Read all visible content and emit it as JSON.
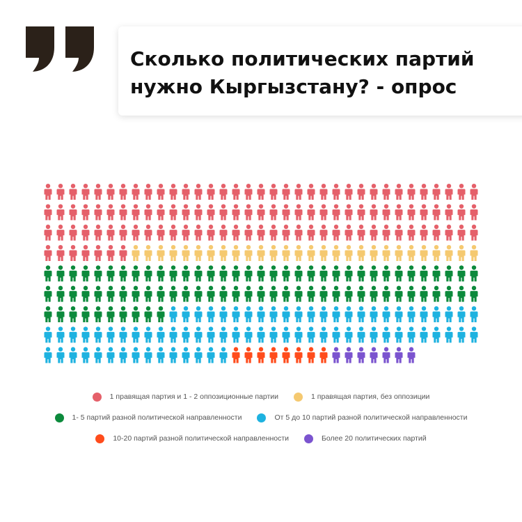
{
  "header": {
    "title_line1": "Сколько политических партий",
    "title_line2": "нужно Кыргызстану? - опрос"
  },
  "colors": {
    "quote": "#2b2119",
    "red": "#e5606a",
    "yellow": "#f5c970",
    "green": "#0c8a3c",
    "blue": "#1eb2e0",
    "orange": "#ff4c1c",
    "purple": "#7b54cf"
  },
  "chart_data": {
    "type": "pictogram",
    "rows": 9,
    "columns": 35,
    "unit": "person",
    "series": [
      {
        "name": "1 правящая партия и 1 - 2 оппозиционные партии",
        "count": 112,
        "color": "#e5606a"
      },
      {
        "name": "1 правящая партия, без оппозиции",
        "count": 28,
        "color": "#f5c970"
      },
      {
        "name": "1- 5 партий разной политической направленности",
        "count": 80,
        "color": "#0c8a3c"
      },
      {
        "name": "От 5 до 10 партий разной политической направленности",
        "count": 75,
        "color": "#1eb2e0"
      },
      {
        "name": "10-20 партий разной политической направленности",
        "count": 8,
        "color": "#ff4c1c"
      },
      {
        "name": "Более 20 политических партий",
        "count": 7,
        "color": "#7b54cf"
      }
    ]
  },
  "legend": {
    "rows": [
      [
        {
          "label": "1 правящая партия и 1 - 2 оппозиционные партии",
          "color": "#e5606a"
        },
        {
          "label": "1 правящая партия, без оппозиции",
          "color": "#f5c970"
        }
      ],
      [
        {
          "label": "1- 5 партий разной политической направленности",
          "color": "#0c8a3c"
        },
        {
          "label": "От 5 до 10 партий разной политической направленности",
          "color": "#1eb2e0"
        }
      ],
      [
        {
          "label": "10-20 партий разной политической направленности",
          "color": "#ff4c1c"
        },
        {
          "label": "Более 20 политических партий",
          "color": "#7b54cf"
        }
      ]
    ]
  }
}
